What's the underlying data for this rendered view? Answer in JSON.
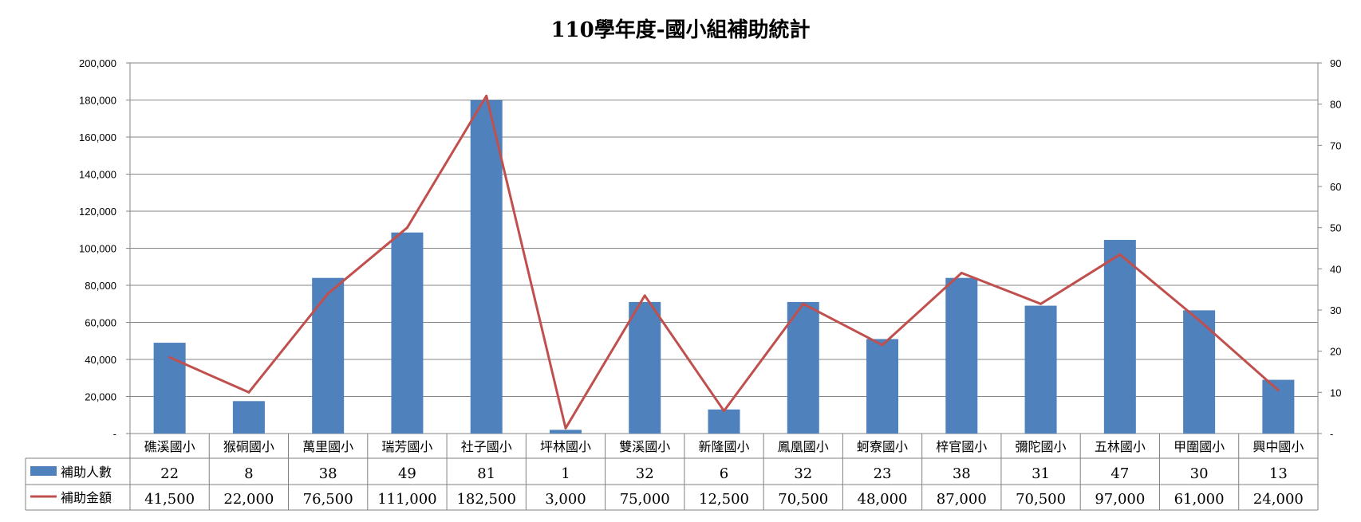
{
  "chart_data": {
    "type": "bar",
    "title": "110學年度-國小組補助統計",
    "categories": [
      "礁溪國小",
      "猴硐國小",
      "萬里國小",
      "瑞芳國小",
      "社子國小",
      "坪林國小",
      "雙溪國小",
      "新隆國小",
      "鳳凰國小",
      "蚵寮國小",
      "梓官國小",
      "彌陀國小",
      "五林國小",
      "甲圍國小",
      "興中國小"
    ],
    "left_axis": {
      "ylim": [
        0,
        200000
      ],
      "ticks": [
        "-",
        "20,000",
        "40,000",
        "60,000",
        "80,000",
        "100,000",
        "120,000",
        "140,000",
        "160,000",
        "180,000",
        "200,000"
      ]
    },
    "right_axis": {
      "ylim": [
        0,
        90
      ],
      "ticks": [
        "-",
        "10",
        "20",
        "30",
        "40",
        "50",
        "60",
        "70",
        "80",
        "90"
      ]
    },
    "grid": true,
    "series": [
      {
        "name": "補助人數",
        "kind": "bar",
        "axis": "left",
        "color": "#4F81BD",
        "values": [
          49000,
          17500,
          84000,
          108500,
          180000,
          2000,
          71000,
          13000,
          71000,
          51000,
          84000,
          69000,
          104500,
          66500,
          29000
        ],
        "table_values": [
          "22",
          "8",
          "38",
          "49",
          "81",
          "1",
          "32",
          "6",
          "32",
          "23",
          "38",
          "31",
          "47",
          "30",
          "13"
        ]
      },
      {
        "name": "補助金額",
        "kind": "line",
        "axis": "right",
        "color": "#C0504D",
        "values": [
          18.5,
          10,
          34,
          50,
          82,
          1.3,
          33.5,
          5.5,
          31.5,
          21.5,
          39,
          31.5,
          43.5,
          27.5,
          10.5
        ],
        "table_values": [
          "41,500",
          "22,000",
          "76,500",
          "111,000",
          "182,500",
          "3,000",
          "75,000",
          "12,500",
          "70,500",
          "48,000",
          "87,000",
          "70,500",
          "97,000",
          "61,000",
          "24,000"
        ]
      }
    ]
  }
}
